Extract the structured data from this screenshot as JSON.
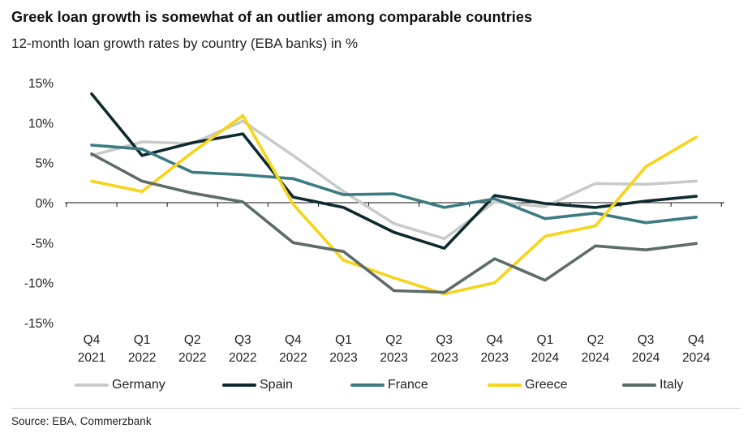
{
  "title": "Greek loan growth is somewhat of an outlier among comparable countries",
  "subtitle": "12-month loan growth rates by country (EBA banks) in %",
  "source": "Source: EBA, Commerzbank",
  "chart_data": {
    "type": "line",
    "categories": [
      [
        "Q4",
        "2021"
      ],
      [
        "Q1",
        "2022"
      ],
      [
        "Q2",
        "2022"
      ],
      [
        "Q3",
        "2022"
      ],
      [
        "Q4",
        "2022"
      ],
      [
        "Q1",
        "2023"
      ],
      [
        "Q2",
        "2023"
      ],
      [
        "Q3",
        "2023"
      ],
      [
        "Q4",
        "2023"
      ],
      [
        "Q1",
        "2024"
      ],
      [
        "Q2",
        "2024"
      ],
      [
        "Q3",
        "2024"
      ],
      [
        "Q4",
        "2024"
      ]
    ],
    "ylim": [
      -15,
      15
    ],
    "yticks": [
      15,
      10,
      5,
      0,
      -5,
      -10,
      -15
    ],
    "ytick_labels": [
      "15%",
      "10%",
      "5%",
      "0%",
      "-5%",
      "-10%",
      "-15%"
    ],
    "grid": false,
    "legend_position": "bottom",
    "series": [
      {
        "name": "Germany",
        "color": "#c9cbca",
        "values": [
          5.9,
          7.6,
          7.4,
          10.2,
          5.9,
          1.4,
          -2.6,
          -4.5,
          0.1,
          -0.5,
          2.4,
          2.3,
          2.7
        ]
      },
      {
        "name": "Spain",
        "color": "#0f2a2e",
        "values": [
          13.6,
          5.9,
          7.5,
          8.6,
          0.7,
          -0.6,
          -3.7,
          -5.7,
          0.9,
          -0.1,
          -0.6,
          0.2,
          0.8
        ]
      },
      {
        "name": "France",
        "color": "#3d7b82",
        "values": [
          7.2,
          6.7,
          3.8,
          3.5,
          3.0,
          1.0,
          1.1,
          -0.6,
          0.5,
          -2.0,
          -1.3,
          -2.5,
          -1.8
        ]
      },
      {
        "name": "Greece",
        "color": "#f7d417",
        "values": [
          2.7,
          1.4,
          6.3,
          10.9,
          -0.2,
          -7.2,
          -9.4,
          -11.4,
          -10.0,
          -4.2,
          -2.9,
          4.5,
          8.2
        ]
      },
      {
        "name": "Italy",
        "color": "#5d6b6b",
        "values": [
          6.1,
          2.7,
          1.2,
          0.1,
          -5.0,
          -6.1,
          -11.0,
          -11.2,
          -7.0,
          -9.7,
          -5.4,
          -5.9,
          -5.1
        ]
      }
    ]
  }
}
